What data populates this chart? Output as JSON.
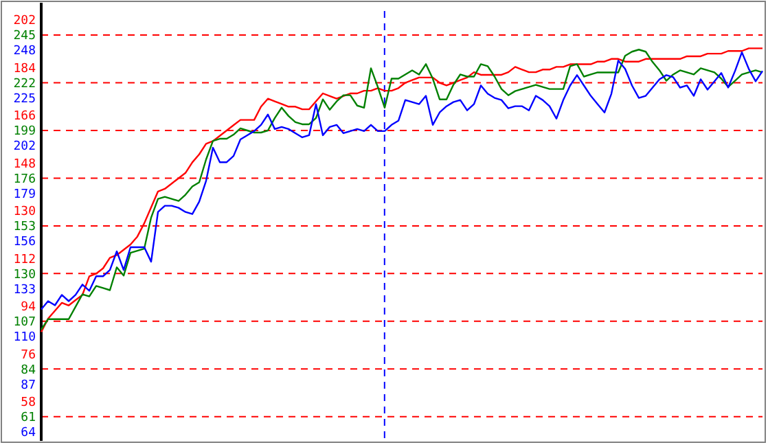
{
  "chart_data": {
    "type": "line",
    "categories": [
      null,
      null,
      null,
      null,
      null,
      null,
      null,
      null,
      null,
      null,
      null,
      null,
      null,
      null,
      null,
      null,
      null,
      null,
      null,
      null,
      null,
      null,
      null,
      null,
      null,
      null,
      null,
      null,
      null,
      null,
      null,
      null,
      null,
      null,
      null,
      null,
      null,
      null,
      null,
      null,
      null,
      null,
      null,
      null,
      null,
      null,
      null,
      null,
      null,
      null,
      null,
      null,
      null,
      null,
      null,
      null,
      null,
      null,
      null,
      null,
      null,
      null,
      null,
      null,
      null,
      null,
      null,
      null,
      null,
      null,
      null,
      null,
      null,
      null,
      null,
      null,
      null,
      null,
      null,
      null,
      null,
      null,
      null,
      null,
      null,
      null,
      null,
      null,
      null,
      null,
      null,
      null,
      null,
      null,
      null,
      null,
      null,
      null,
      null,
      null,
      null,
      null,
      null,
      null,
      null,
      null
    ],
    "ylim": [
      49.3,
      260.6
    ],
    "yticks": [
      61,
      84,
      107,
      130,
      153,
      176,
      199,
      222,
      245
    ],
    "y2lim": [
      48.9,
      214.2
    ],
    "y2ticks": [
      58,
      76,
      94,
      112,
      130,
      148,
      166,
      184,
      202
    ],
    "y3lim": [
      59.6,
      270.9
    ],
    "y3ticks": [
      64,
      87,
      110,
      133,
      156,
      179,
      202,
      225,
      248
    ],
    "tick_labels": "y",
    "grid": "y",
    "marker": "none",
    "line_style": "solid",
    "series": [
      {
        "color": "#ff0000",
        "axis": "y2",
        "values": [
          90,
          95,
          98,
          101,
          100,
          102,
          104,
          111,
          112,
          114,
          118,
          119,
          121,
          123,
          126,
          131,
          137,
          143,
          144,
          146,
          148,
          150,
          154,
          157,
          161,
          162,
          164,
          166,
          168,
          170,
          170,
          170,
          175,
          178,
          177,
          176,
          175,
          175,
          174,
          174,
          177,
          180,
          179,
          178,
          179,
          180,
          180,
          181,
          181,
          182,
          181,
          181,
          182,
          184,
          185,
          186,
          186,
          186,
          184,
          183,
          184,
          185,
          186,
          188,
          187,
          187,
          187,
          187,
          188,
          190,
          189,
          188,
          188,
          189,
          189,
          190,
          190,
          191,
          191,
          191,
          191,
          192,
          192,
          193,
          193,
          192,
          192,
          192,
          193,
          193,
          193,
          193,
          193,
          193,
          194,
          194,
          194,
          195,
          195,
          195,
          196,
          196,
          196,
          197,
          197,
          197
        ]
      },
      {
        "color": "#008000",
        "axis": "y",
        "values": [
          103,
          108,
          108,
          108,
          108,
          114,
          120,
          119,
          124,
          123,
          122,
          133,
          129,
          140,
          141,
          142,
          157,
          166,
          167,
          166,
          165,
          168,
          172,
          174,
          185,
          194,
          195,
          195,
          197,
          200,
          199,
          198,
          198,
          199,
          205,
          210,
          206,
          203,
          202,
          202,
          205,
          214,
          209,
          213,
          216,
          216,
          211,
          210,
          229,
          220,
          210,
          224,
          224,
          226,
          228,
          226,
          231,
          224,
          214,
          214,
          221,
          226,
          225,
          225,
          231,
          230,
          225,
          219,
          216,
          218,
          219,
          220,
          221,
          220,
          219,
          219,
          219,
          230,
          231,
          225,
          226,
          227,
          227,
          227,
          227,
          235,
          237,
          238,
          237,
          232,
          228,
          223,
          226,
          228,
          227,
          226,
          229,
          228,
          227,
          224,
          220,
          223,
          226,
          227,
          228,
          227
        ]
      },
      {
        "color": "#0000ff",
        "axis": "y3",
        "values": [
          123,
          127,
          125,
          130,
          127,
          130,
          135,
          132,
          139,
          139,
          142,
          151,
          142,
          153,
          153,
          153,
          146,
          170,
          173,
          173,
          172,
          170,
          169,
          175,
          185,
          201,
          194,
          194,
          197,
          205,
          207,
          209,
          212,
          217,
          210,
          211,
          210,
          208,
          206,
          207,
          222,
          207,
          211,
          212,
          208,
          209,
          210,
          209,
          212,
          209,
          209,
          212,
          214,
          224,
          223,
          222,
          226,
          212,
          218,
          221,
          223,
          224,
          219,
          222,
          231,
          227,
          225,
          224,
          220,
          221,
          221,
          219,
          226,
          224,
          221,
          215,
          224,
          231,
          236,
          231,
          226,
          222,
          218,
          227,
          243,
          239,
          231,
          225,
          226,
          230,
          234,
          236,
          235,
          230,
          231,
          226,
          234,
          229,
          233,
          237,
          230,
          238,
          247,
          239,
          233,
          238
        ]
      }
    ]
  }
}
